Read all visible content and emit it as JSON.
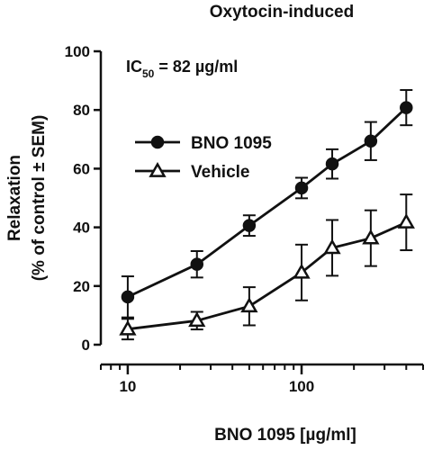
{
  "chart_data": {
    "type": "line",
    "title": "Oxytocin-induced",
    "xlabel": "BNO 1095 [µg/ml]",
    "ylabel": [
      "Relaxation",
      "(% of control ± SEM)"
    ],
    "x_scale": "log",
    "xlim": [
      7,
      500
    ],
    "ylim": [
      0,
      100
    ],
    "x_ticks": [
      {
        "value": 10,
        "label": "10"
      },
      {
        "value": 100,
        "label": "100"
      }
    ],
    "y_ticks": [
      {
        "value": 0,
        "label": "0"
      },
      {
        "value": 20,
        "label": "20"
      },
      {
        "value": 40,
        "label": "40"
      },
      {
        "value": 60,
        "label": "60"
      },
      {
        "value": 80,
        "label": "80"
      },
      {
        "value": 100,
        "label": "100"
      }
    ],
    "annotation": {
      "prefix": "IC",
      "subscript": "50",
      "suffix": " = 82 µg/ml"
    },
    "legend_position": "upper-left",
    "grid": false,
    "series": [
      {
        "name": "BNO 1095",
        "marker": "circle",
        "points": [
          {
            "x": 10,
            "y": 16.3,
            "err": 7
          },
          {
            "x": 25,
            "y": 27.4,
            "err": 4.5
          },
          {
            "x": 50,
            "y": 40.6,
            "err": 3.5
          },
          {
            "x": 100,
            "y": 53.4,
            "err": 3.5
          },
          {
            "x": 150,
            "y": 61.6,
            "err": 5
          },
          {
            "x": 250,
            "y": 69.4,
            "err": 6.5
          },
          {
            "x": 400,
            "y": 80.8,
            "err": 6
          }
        ]
      },
      {
        "name": "Vehicle",
        "marker": "triangle",
        "points": [
          {
            "x": 10,
            "y": 5.3,
            "err": 3.5
          },
          {
            "x": 25,
            "y": 8.2,
            "err": 3
          },
          {
            "x": 50,
            "y": 13.1,
            "err": 6.5
          },
          {
            "x": 100,
            "y": 24.6,
            "err": 9.5
          },
          {
            "x": 150,
            "y": 33.0,
            "err": 9.5
          },
          {
            "x": 250,
            "y": 36.3,
            "err": 9.5
          },
          {
            "x": 400,
            "y": 41.7,
            "err": 9.5
          }
        ]
      }
    ]
  }
}
